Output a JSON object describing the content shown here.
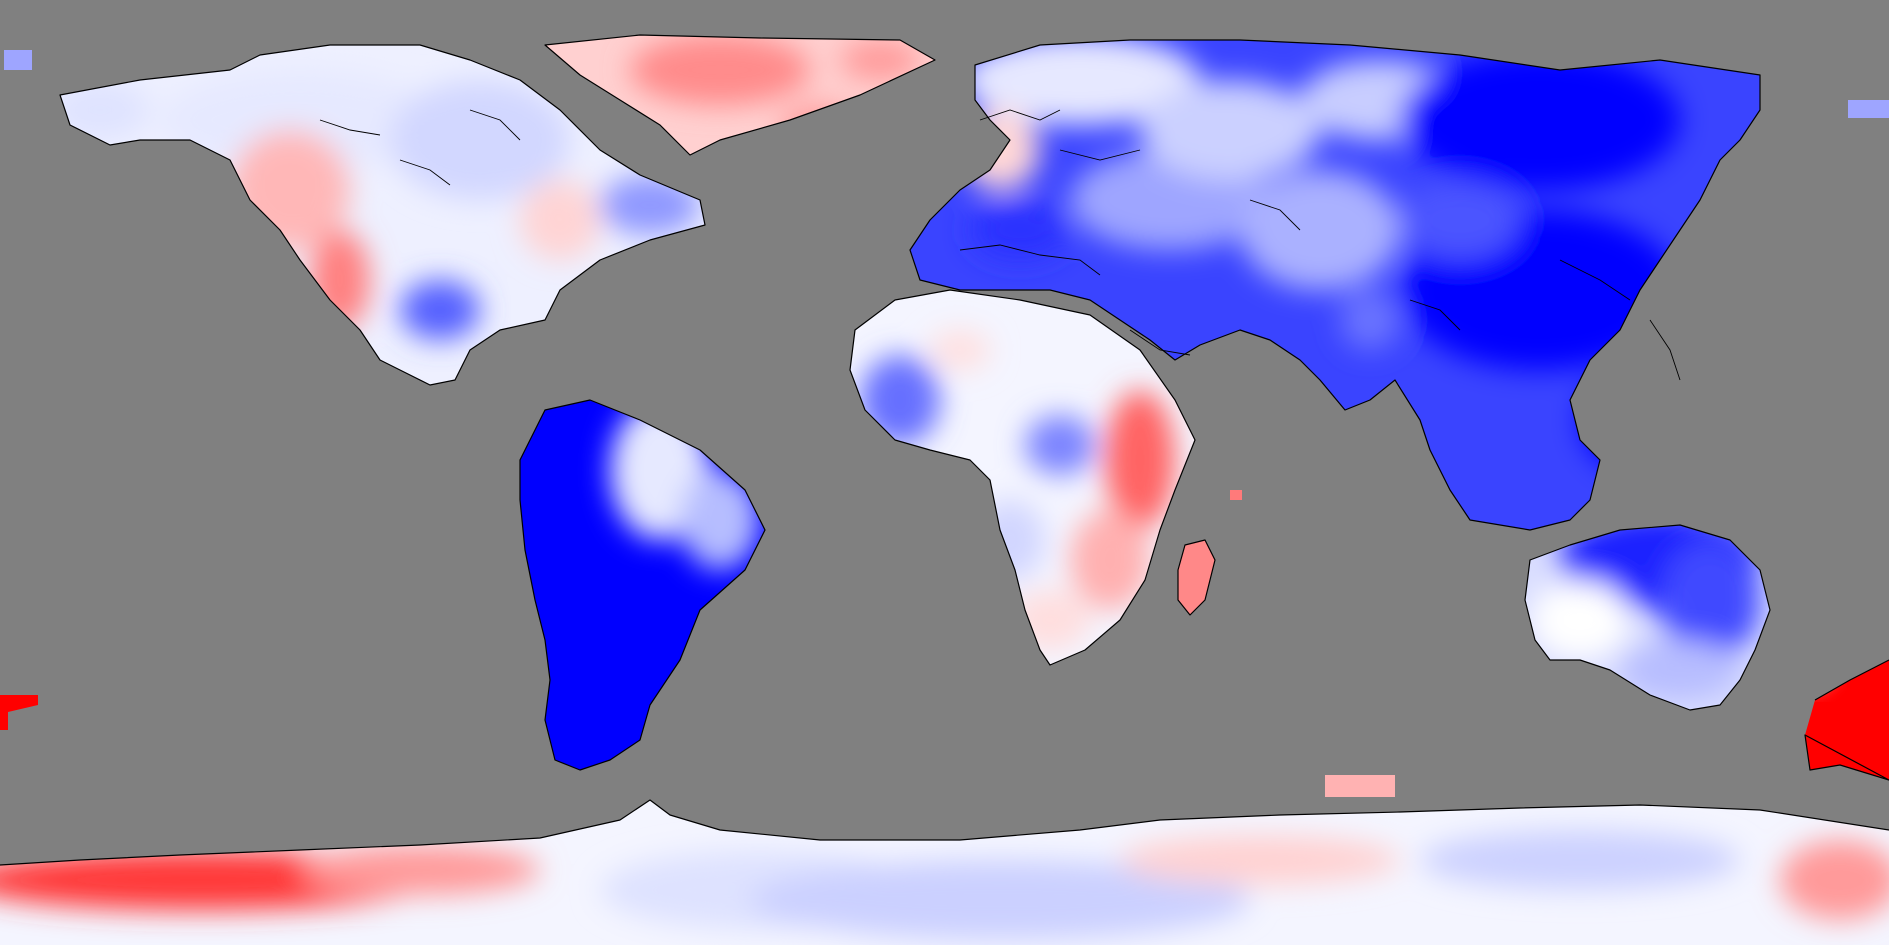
{
  "map": {
    "projection": "equirectangular",
    "background_color": "#808080",
    "colormap": {
      "type": "diverging",
      "low_color": "#0000ff",
      "mid_color": "#ffffff",
      "high_color": "#ff0000",
      "missing_color": "#808080"
    },
    "regions": [
      {
        "name": "north-america",
        "dominant_tone": "pale-blue-white"
      },
      {
        "name": "pacific-northwest-us",
        "dominant_tone": "light-red"
      },
      {
        "name": "greenland",
        "dominant_tone": "light-red"
      },
      {
        "name": "south-america",
        "dominant_tone": "deep-blue"
      },
      {
        "name": "europe",
        "dominant_tone": "blue"
      },
      {
        "name": "africa",
        "dominant_tone": "white-blue"
      },
      {
        "name": "east-africa",
        "dominant_tone": "red"
      },
      {
        "name": "madagascar",
        "dominant_tone": "light-red"
      },
      {
        "name": "asia",
        "dominant_tone": "deep-blue"
      },
      {
        "name": "southeast-asia",
        "dominant_tone": "deep-blue"
      },
      {
        "name": "australia",
        "dominant_tone": "blue-white"
      },
      {
        "name": "new-zealand",
        "dominant_tone": "red"
      },
      {
        "name": "antarctica",
        "dominant_tone": "pale-blue-white-red-edges"
      }
    ]
  }
}
